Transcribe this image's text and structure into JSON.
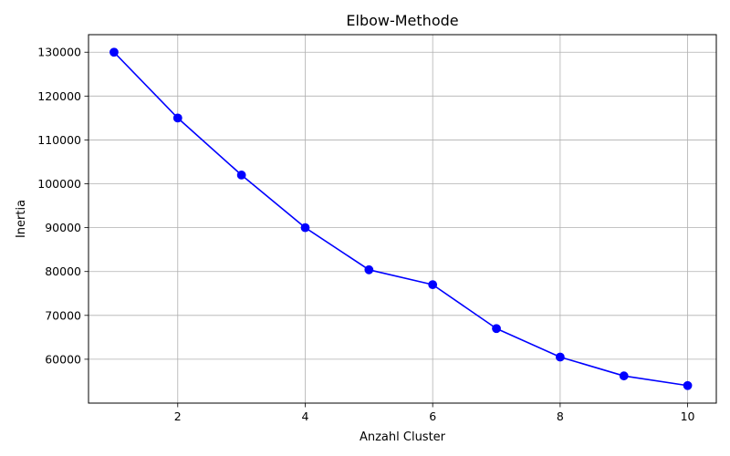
{
  "chart_data": {
    "type": "line",
    "title": "Elbow-Methode",
    "xlabel": "Anzahl Cluster",
    "ylabel": "Inertia",
    "xlim": [
      0.6,
      10.45
    ],
    "ylim": [
      50000,
      134000
    ],
    "xticks": [
      2,
      4,
      6,
      8,
      10
    ],
    "yticks": [
      60000,
      70000,
      80000,
      90000,
      100000,
      110000,
      120000,
      130000
    ],
    "grid": true,
    "legend": "none",
    "series": [
      {
        "color": "#0000ff",
        "marker": "circle",
        "x": [
          1,
          2,
          3,
          4,
          5,
          6,
          7,
          8,
          9,
          10
        ],
        "y": [
          130000,
          115000,
          102000,
          90000,
          80400,
          77000,
          67000,
          60500,
          56200,
          54000
        ]
      }
    ]
  }
}
